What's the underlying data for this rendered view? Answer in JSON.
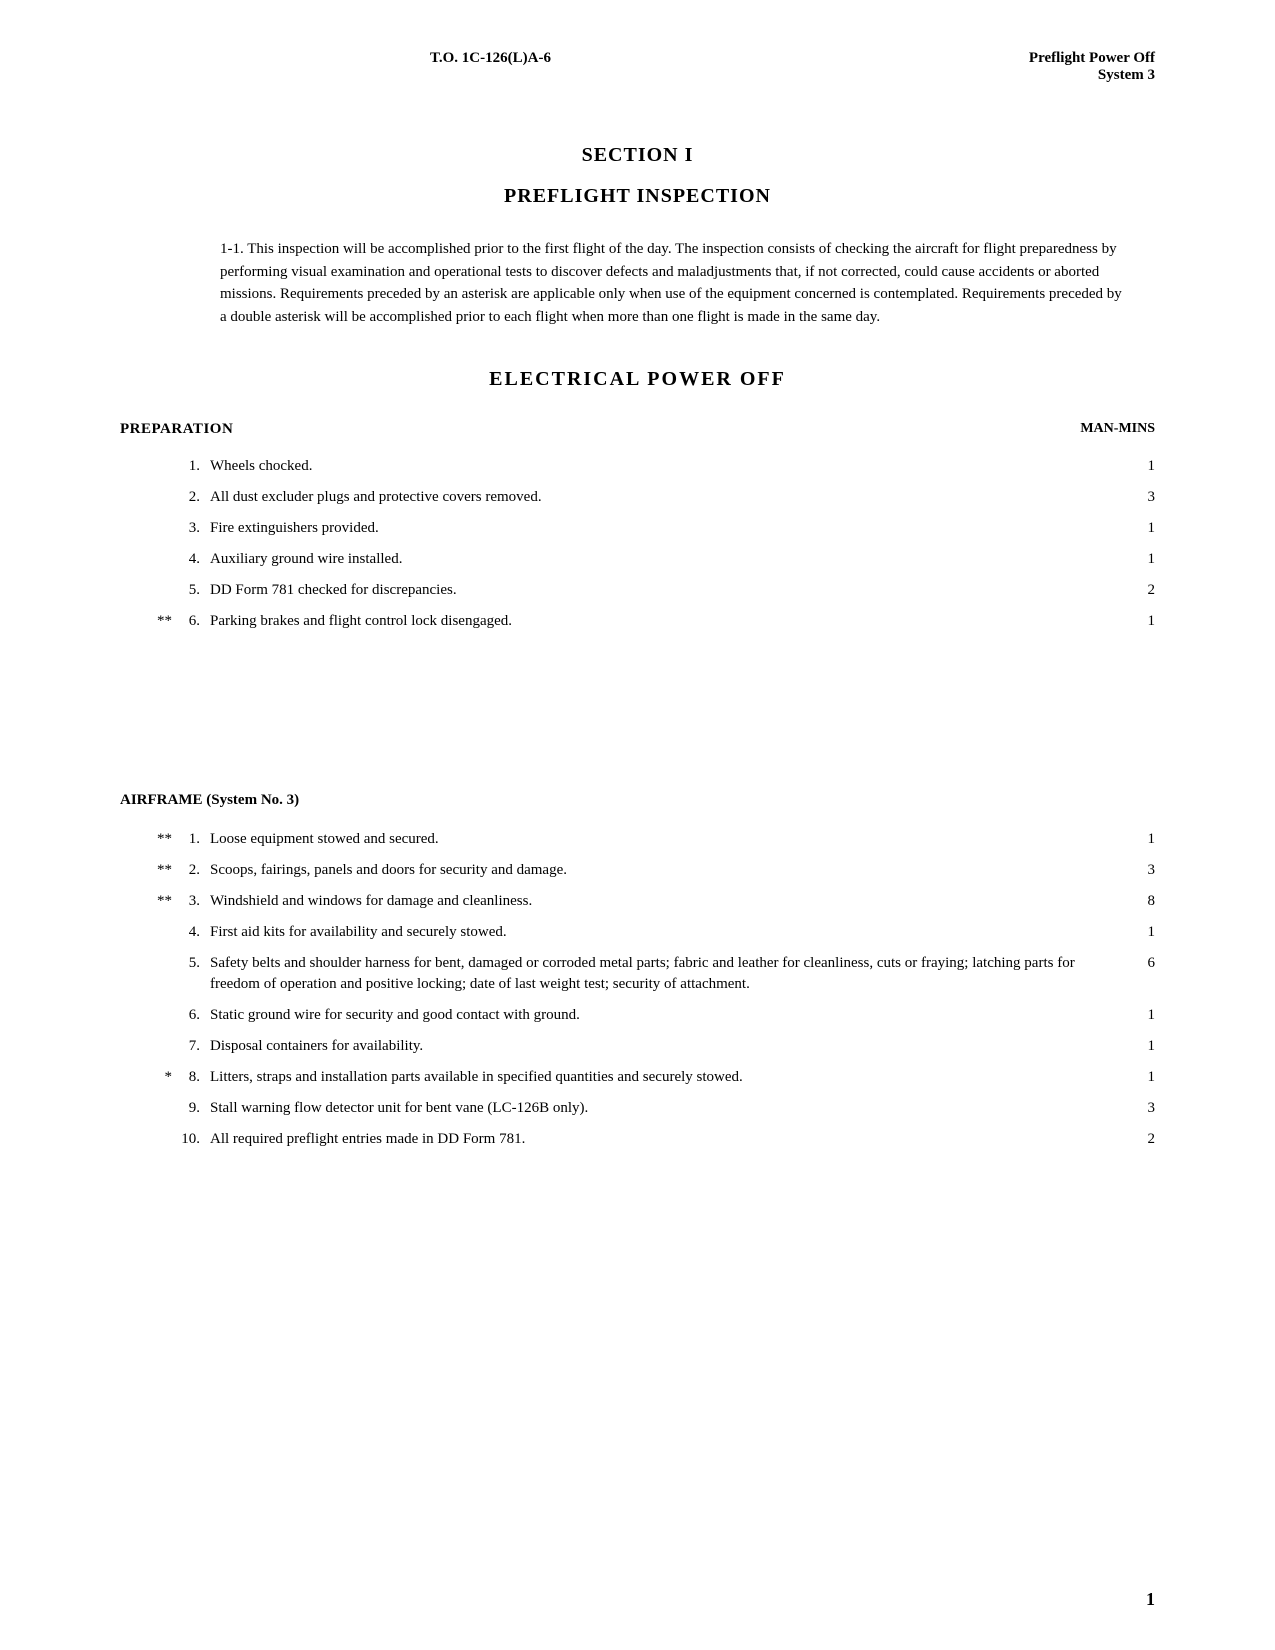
{
  "header": {
    "doc_number": "T.O. 1C-126(L)A-6",
    "right_line1": "Preflight Power Off",
    "right_line2": "System 3"
  },
  "section": {
    "title": "SECTION I",
    "subtitle": "PREFLIGHT INSPECTION"
  },
  "intro": "1-1.  This inspection will be accomplished prior to the first flight of the day.  The inspection consists of checking the aircraft for flight preparedness by performing visual examination and operational tests to discover defects and maladjustments that, if not corrected, could cause accidents or aborted missions. Requirements preceded by an asterisk are applicable only when use of the equipment concerned is contemplated. Requirements preceded by a double asterisk will be accomplished prior to each flight when more than one flight is made in the same day.",
  "elec_title": "ELECTRICAL POWER OFF",
  "preparation": {
    "title": "PREPARATION",
    "manmins_label": "MAN-MINS",
    "items": [
      {
        "prefix": "",
        "num": "1.",
        "text": "Wheels chocked.",
        "mins": "1"
      },
      {
        "prefix": "",
        "num": "2.",
        "text": "All dust excluder plugs and protective covers removed.",
        "mins": "3"
      },
      {
        "prefix": "",
        "num": "3.",
        "text": "Fire extinguishers provided.",
        "mins": "1"
      },
      {
        "prefix": "",
        "num": "4.",
        "text": "Auxiliary ground wire installed.",
        "mins": "1"
      },
      {
        "prefix": "",
        "num": "5.",
        "text": "DD Form 781 checked for discrepancies.",
        "mins": "2"
      },
      {
        "prefix": "**",
        "num": "6.",
        "text": "Parking brakes and flight control lock disengaged.",
        "mins": "1"
      }
    ]
  },
  "airframe": {
    "title": "AIRFRAME (System No. 3)",
    "items": [
      {
        "prefix": "**",
        "num": "1.",
        "text": "Loose equipment stowed and secured.",
        "mins": "1"
      },
      {
        "prefix": "**",
        "num": "2.",
        "text": "Scoops, fairings, panels and doors for security and damage.",
        "mins": "3"
      },
      {
        "prefix": "**",
        "num": "3.",
        "text": "Windshield and windows for damage and cleanliness.",
        "mins": "8"
      },
      {
        "prefix": "",
        "num": "4.",
        "text": "First aid kits for availability and securely stowed.",
        "mins": "1"
      },
      {
        "prefix": "",
        "num": "5.",
        "text": "Safety belts and shoulder harness for bent, damaged or  corroded metal parts; fabric and leather for cleanliness,  cuts or fraying; latching parts for freedom of operation  and positive locking; date of last weight test; security of attachment.",
        "mins": "6"
      },
      {
        "prefix": "",
        "num": "6.",
        "text": "Static ground wire for security and good contact with ground.",
        "mins": "1"
      },
      {
        "prefix": "",
        "num": "7.",
        "text": "Disposal containers for availability.",
        "mins": "1"
      },
      {
        "prefix": "*",
        "num": "8.",
        "text": "Litters, straps and installation parts available in specified quantities and securely stowed.",
        "mins": "1"
      },
      {
        "prefix": "",
        "num": "9.",
        "text": "Stall warning flow detector unit for bent vane (LC-126B only).",
        "mins": "3"
      },
      {
        "prefix": "",
        "num": "10.",
        "text": "All required preflight entries made in DD Form 781.",
        "mins": "2"
      }
    ]
  },
  "page_number": "1"
}
